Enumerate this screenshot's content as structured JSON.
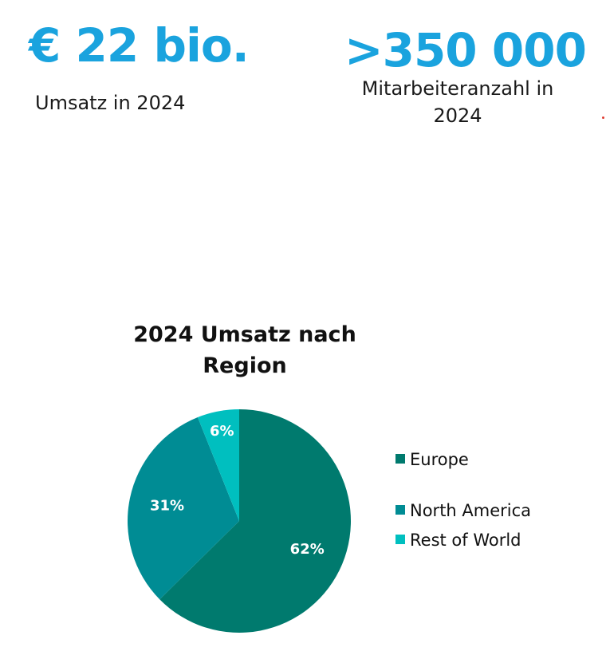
{
  "kpis": [
    {
      "value": "€ 22 bio.",
      "label": "Umsatz in 2024"
    },
    {
      "value": ">350 000",
      "label": "Mitarbeiteranzahl in 2024"
    }
  ],
  "colors": {
    "accent": "#1AA3DE",
    "dot": "#E03A2F",
    "label_text": "#FFFFFF"
  },
  "chart_data": {
    "type": "pie",
    "title": "2024 Umsatz nach Region",
    "slices": [
      {
        "name": "Europe",
        "value": 62,
        "label": "62%",
        "color": "#007A6E"
      },
      {
        "name": "North America",
        "value": 31,
        "label": "31%",
        "color": "#008C94"
      },
      {
        "name": "Rest of World",
        "value": 6,
        "label": "6%",
        "color": "#00BFBF"
      }
    ],
    "legend_position": "right"
  }
}
